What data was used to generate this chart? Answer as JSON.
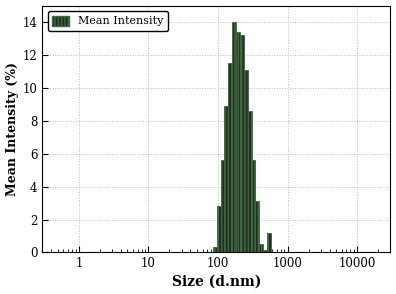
{
  "title": "",
  "xlabel": "Size (d.nm)",
  "ylabel": "Mean Intensity (%)",
  "legend_label": "Mean Intensity",
  "xlim": [
    0.3,
    30000
  ],
  "ylim": [
    0,
    15
  ],
  "yticks": [
    0,
    2,
    4,
    6,
    8,
    10,
    12,
    14
  ],
  "bar_centers": [
    90,
    102,
    116,
    132,
    150,
    170,
    194,
    220,
    250,
    284,
    323,
    367,
    417,
    474,
    539,
    612
  ],
  "bar_heights": [
    0.3,
    2.8,
    5.6,
    8.9,
    11.5,
    14.0,
    13.4,
    13.2,
    11.1,
    8.6,
    5.6,
    3.1,
    0.5,
    0.15,
    1.2,
    0.0
  ],
  "bar_color": "#2a2a2a",
  "bar_edge_color": "#3a6e3a",
  "background_color": "#ffffff",
  "grid_dot_color": "#bbbbbb",
  "xtick_labels": [
    "1",
    "10",
    "100",
    "1000",
    "10000"
  ],
  "xtick_positions": [
    1,
    10,
    100,
    1000,
    10000
  ]
}
